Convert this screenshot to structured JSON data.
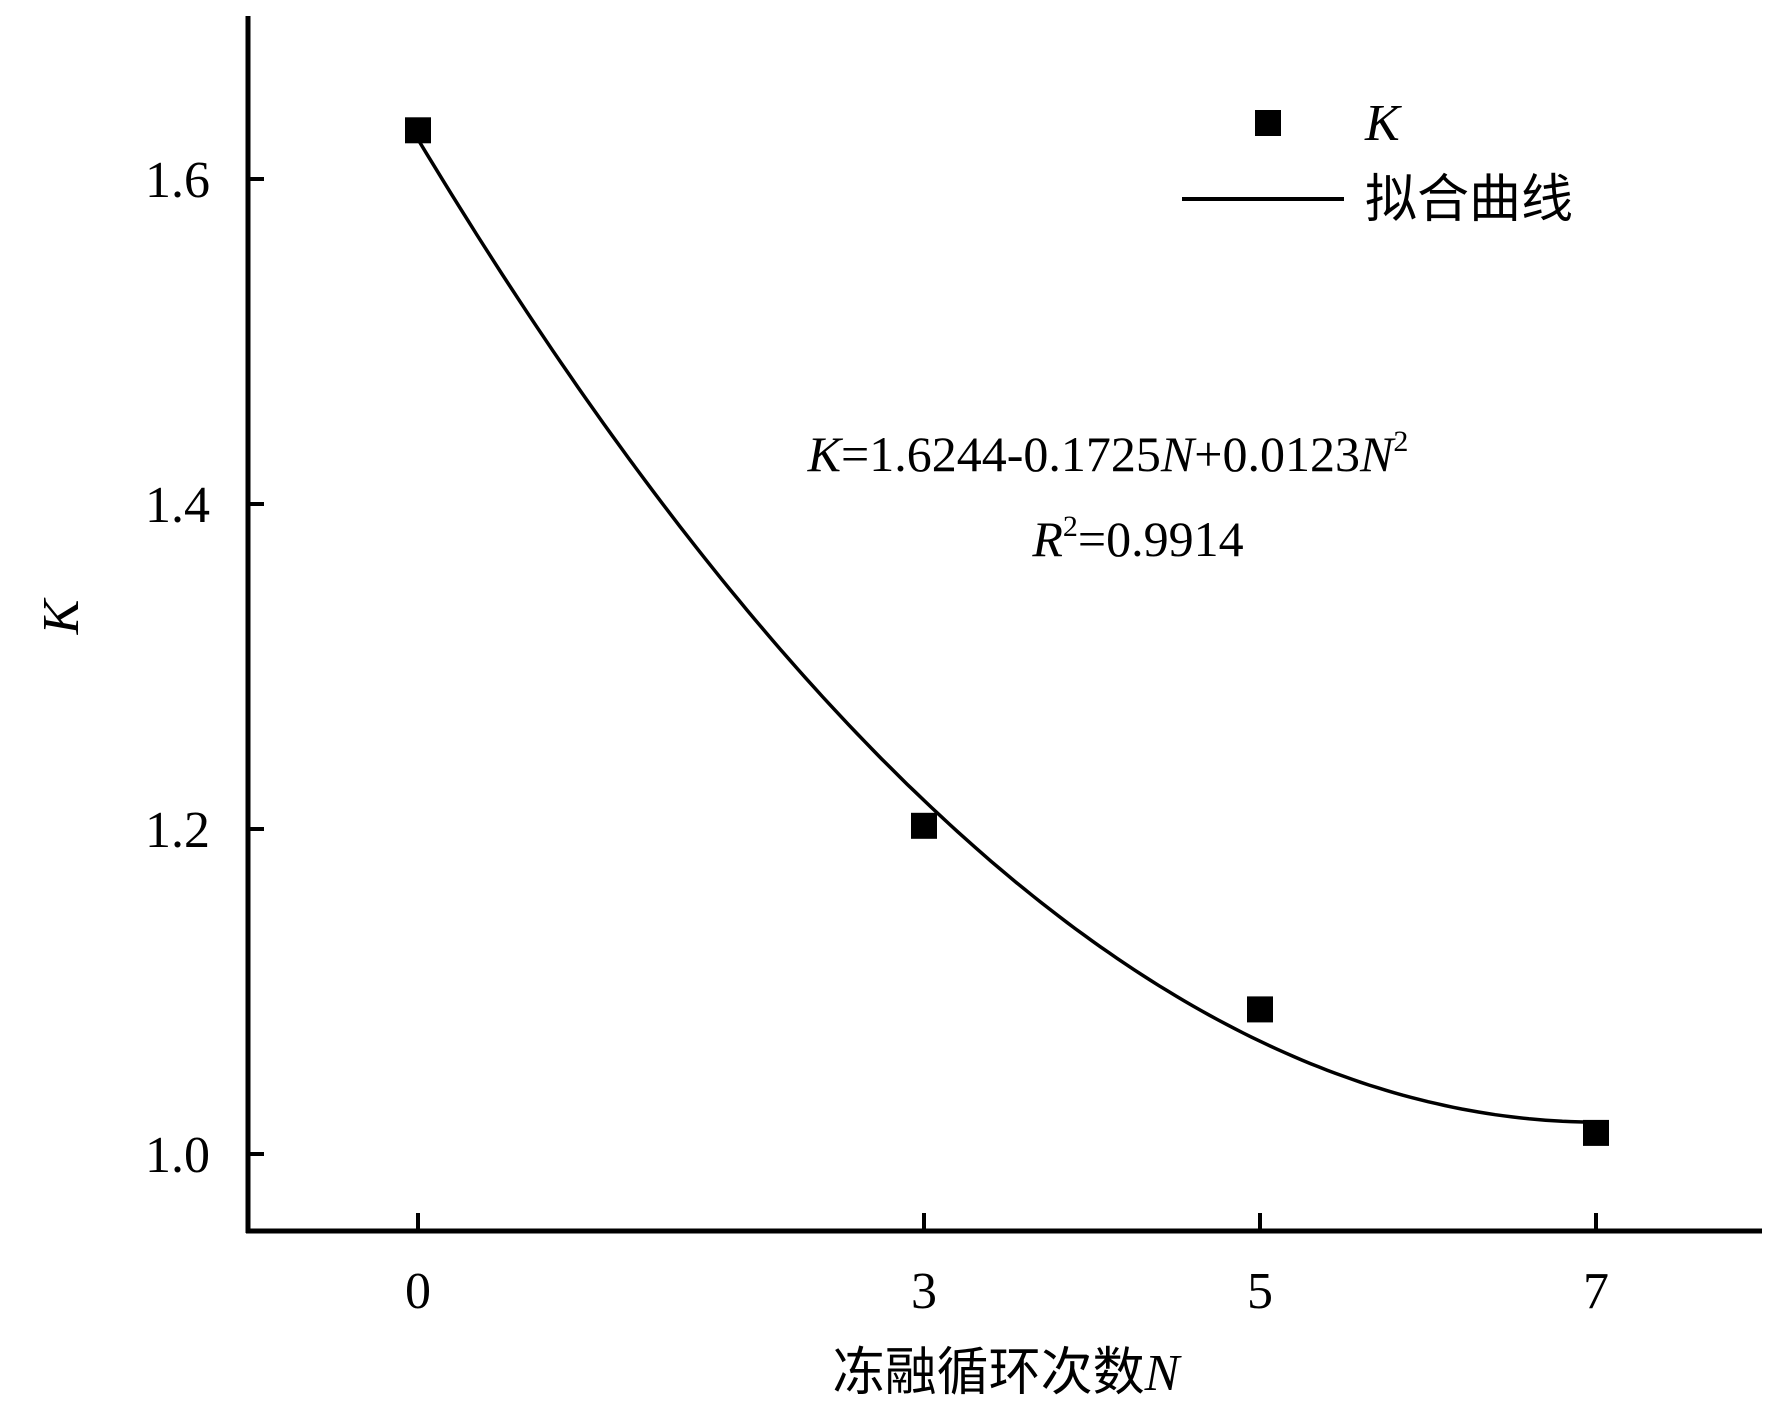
{
  "chart_data": {
    "type": "scatter",
    "title": "",
    "xlabel_text": "冻融循环次数",
    "xlabel_var": "N",
    "ylabel": "K",
    "x_categories": [
      "0",
      "3",
      "5",
      "7"
    ],
    "yticks": [
      "1.0",
      "1.2",
      "1.4",
      "1.6"
    ],
    "ylim": [
      0.952,
      1.705
    ],
    "grid": false,
    "legend_position": "top-right",
    "series": [
      {
        "name": "K",
        "kind": "scatter",
        "marker": "square",
        "points": [
          {
            "x": 0,
            "y": 1.63
          },
          {
            "x": 3,
            "y": 1.202
          },
          {
            "x": 5,
            "y": 1.089
          },
          {
            "x": 7,
            "y": 1.013
          }
        ]
      },
      {
        "name": "拟合曲线",
        "kind": "line",
        "fit": {
          "a": 1.6244,
          "b": -0.1725,
          "c": 0.0123
        }
      }
    ],
    "annotations": {
      "equation": {
        "K": "K",
        "coef": "=1.6244-0.1725",
        "N1": "N",
        "mid": "+0.0123",
        "N2": "N",
        "sup": "2"
      },
      "r2": {
        "R": "R",
        "sup": "2",
        "value": "=0.9914"
      }
    },
    "colors": {
      "axis": "#000000",
      "marker": "#000000",
      "line": "#000000"
    }
  }
}
